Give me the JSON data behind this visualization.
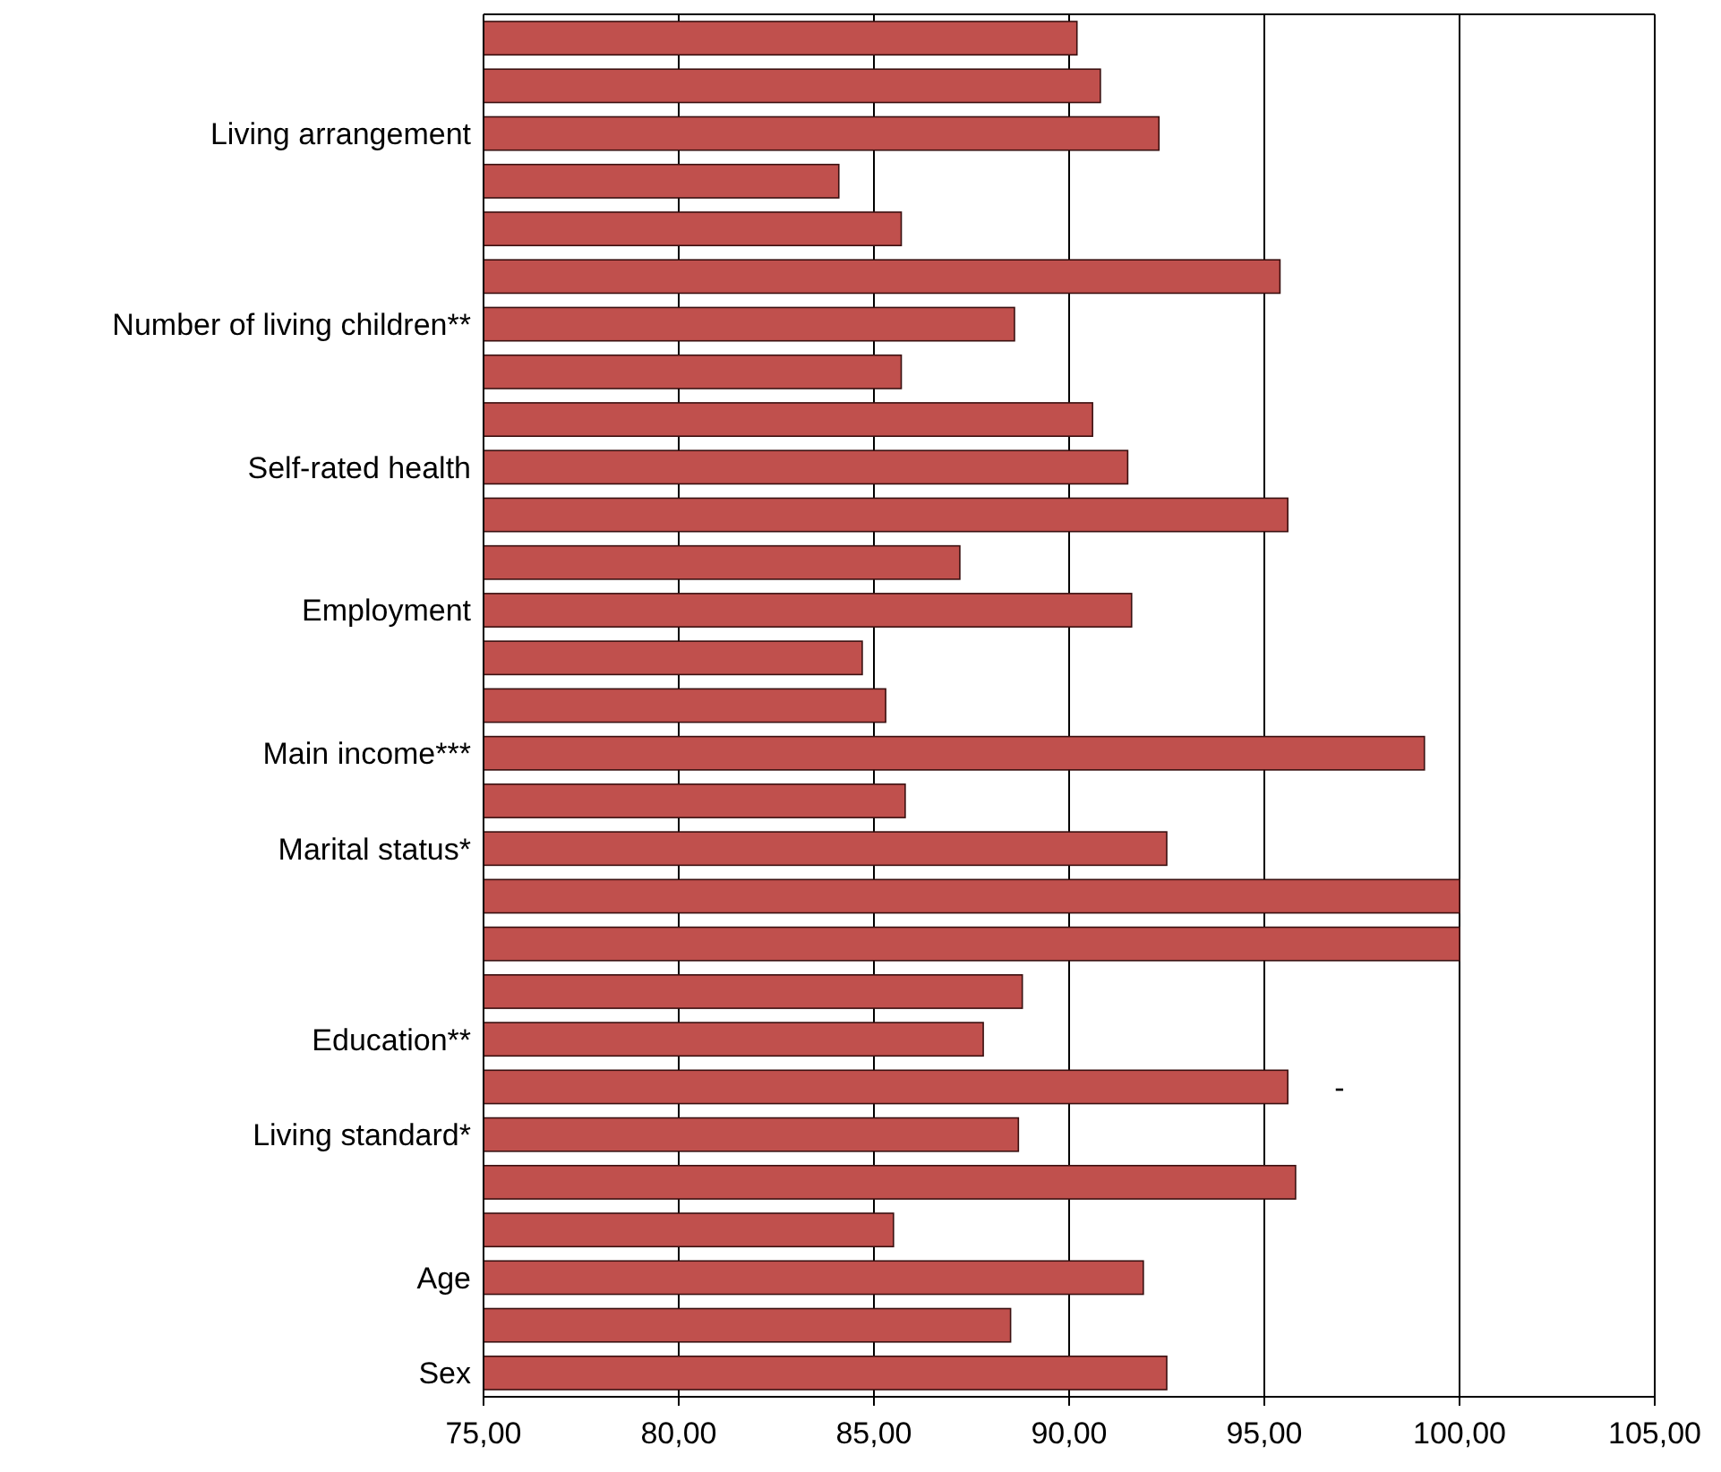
{
  "chart_data": {
    "type": "bar",
    "orientation": "horizontal",
    "categories": [
      null,
      null,
      "Living arrangement",
      null,
      null,
      null,
      "Number of living children**",
      null,
      null,
      "Self-rated health",
      null,
      null,
      "Employment",
      null,
      null,
      "Main income***",
      null,
      "Marital status*",
      null,
      null,
      null,
      "Education**",
      null,
      "Living standard*",
      null,
      null,
      "Age",
      null,
      "Sex"
    ],
    "values": [
      90.2,
      90.8,
      92.3,
      84.1,
      85.7,
      95.4,
      88.6,
      85.7,
      90.6,
      91.5,
      95.6,
      87.2,
      91.6,
      84.7,
      85.3,
      99.1,
      85.8,
      92.5,
      100,
      100,
      88.8,
      87.8,
      95.6,
      88.7,
      95.8,
      85.5,
      91.9,
      88.5,
      92.5
    ],
    "color": "#c0504d",
    "xlim": [
      75,
      105
    ],
    "xticks": [
      {
        "value": 75,
        "label": "75,00"
      },
      {
        "value": 80,
        "label": "80,00"
      },
      {
        "value": 85,
        "label": "85,00"
      },
      {
        "value": 90,
        "label": "90,00"
      },
      {
        "value": 95,
        "label": "95,00"
      },
      {
        "value": 100,
        "label": "100,00"
      },
      {
        "value": 105,
        "label": "105,00"
      }
    ],
    "grid": "x",
    "annotations": [
      "-"
    ]
  }
}
